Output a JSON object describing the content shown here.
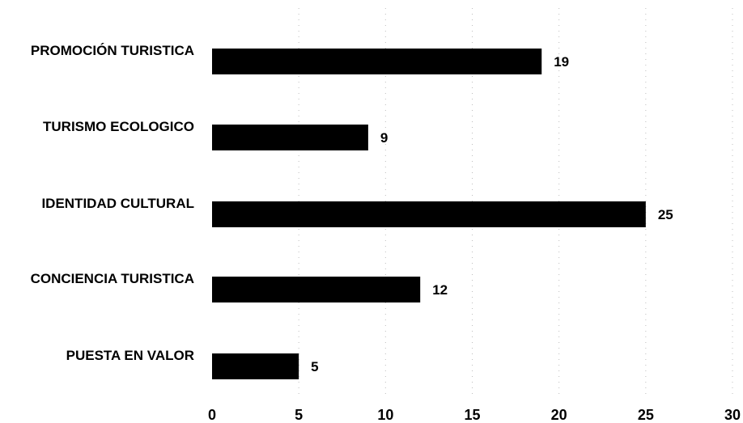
{
  "chart_data": {
    "type": "bar",
    "orientation": "horizontal",
    "categories": [
      "PROMOCIÓN TURISTICA",
      "TURISMO ECOLOGICO",
      "IDENTIDAD CULTURAL",
      "CONCIENCIA TURISTICA",
      "PUESTA EN VALOR"
    ],
    "values": [
      19,
      9,
      25,
      12,
      5
    ],
    "value_labels": [
      "19",
      "9",
      "25",
      "12",
      "5"
    ],
    "xticks": [
      0,
      5,
      10,
      15,
      20,
      25,
      30
    ],
    "xtick_labels": [
      "0",
      "5",
      "10",
      "15",
      "20",
      "25",
      "30"
    ],
    "xlim": [
      0,
      30
    ],
    "grid": true,
    "bar_color": "#000000",
    "title": "",
    "xlabel": "",
    "ylabel": ""
  }
}
